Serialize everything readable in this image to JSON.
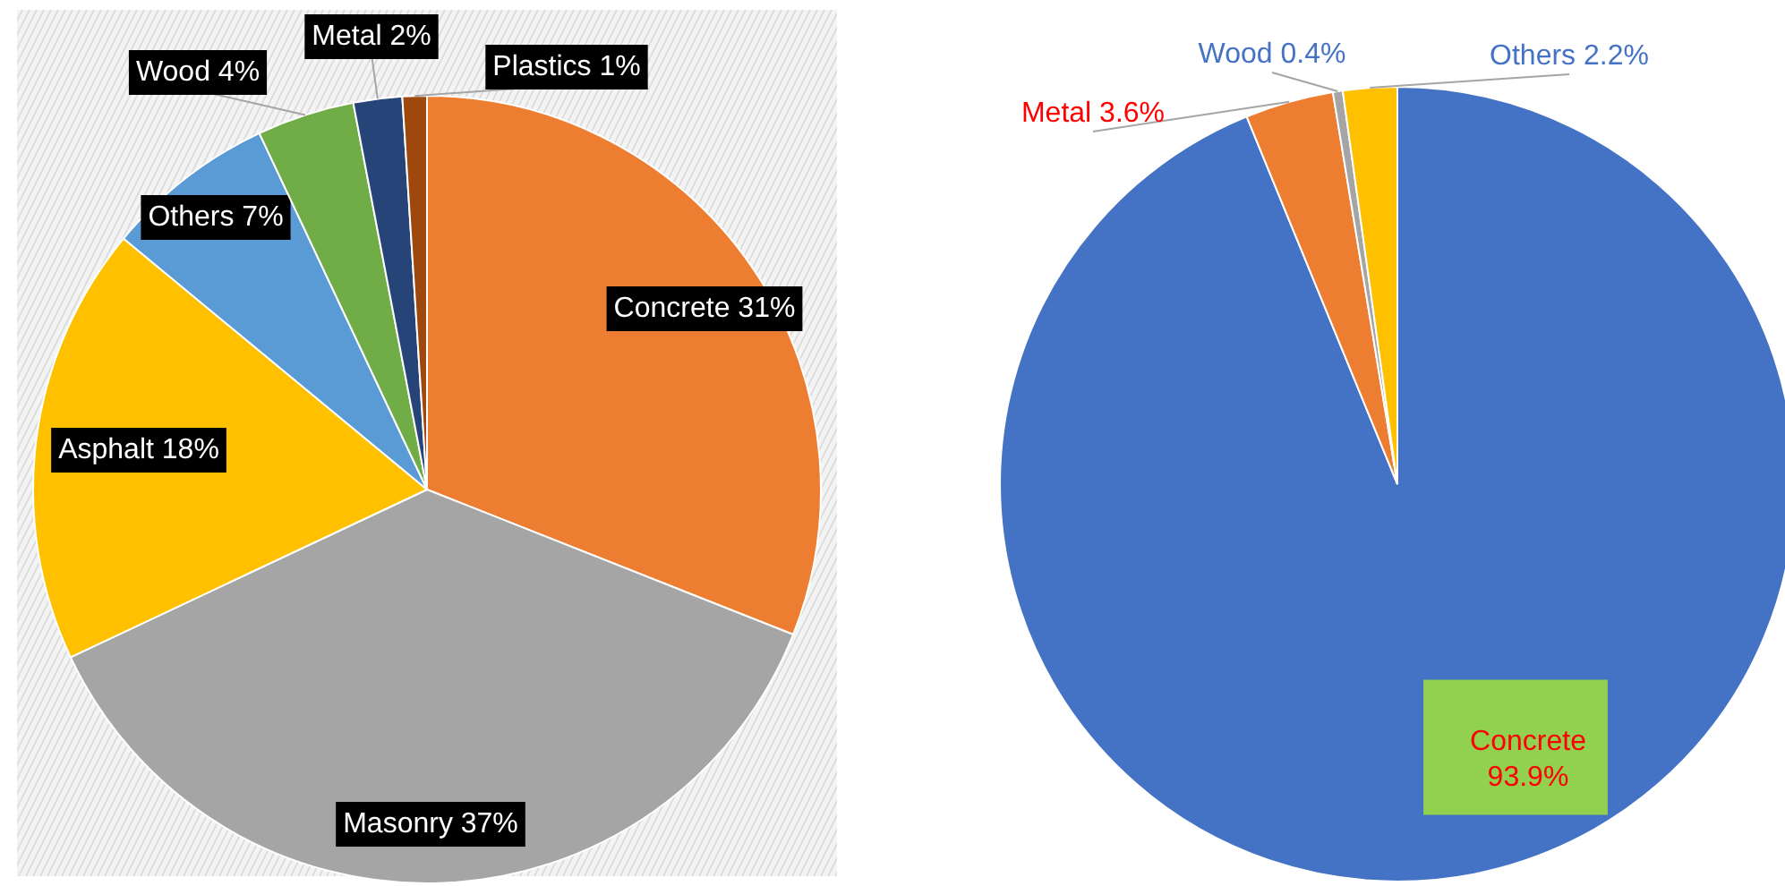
{
  "chart_data": [
    {
      "type": "pie",
      "categories": [
        "Concrete",
        "Masonry",
        "Asphalt",
        "Others",
        "Wood",
        "Metal",
        "Plastics"
      ],
      "values": [
        31,
        37,
        18,
        7,
        4,
        2,
        1
      ],
      "colors": [
        "#ed7d31",
        "#a5a5a5",
        "#ffc000",
        "#5b9bd5",
        "#70ad47",
        "#264478",
        "#9e480e"
      ],
      "value_labels": [
        "31%",
        "37%",
        "18%",
        "7%",
        "4%",
        "2%",
        "1%"
      ]
    },
    {
      "type": "pie",
      "categories": [
        "Concrete",
        "Metal",
        "Wood",
        "Others"
      ],
      "values": [
        93.9,
        3.6,
        0.4,
        2.2
      ],
      "colors": [
        "#4472c4",
        "#ed7d31",
        "#a5a5a5",
        "#ffc000"
      ],
      "value_labels": [
        "93.9%",
        "3.6%",
        "0.4%",
        "2.2%"
      ]
    }
  ]
}
